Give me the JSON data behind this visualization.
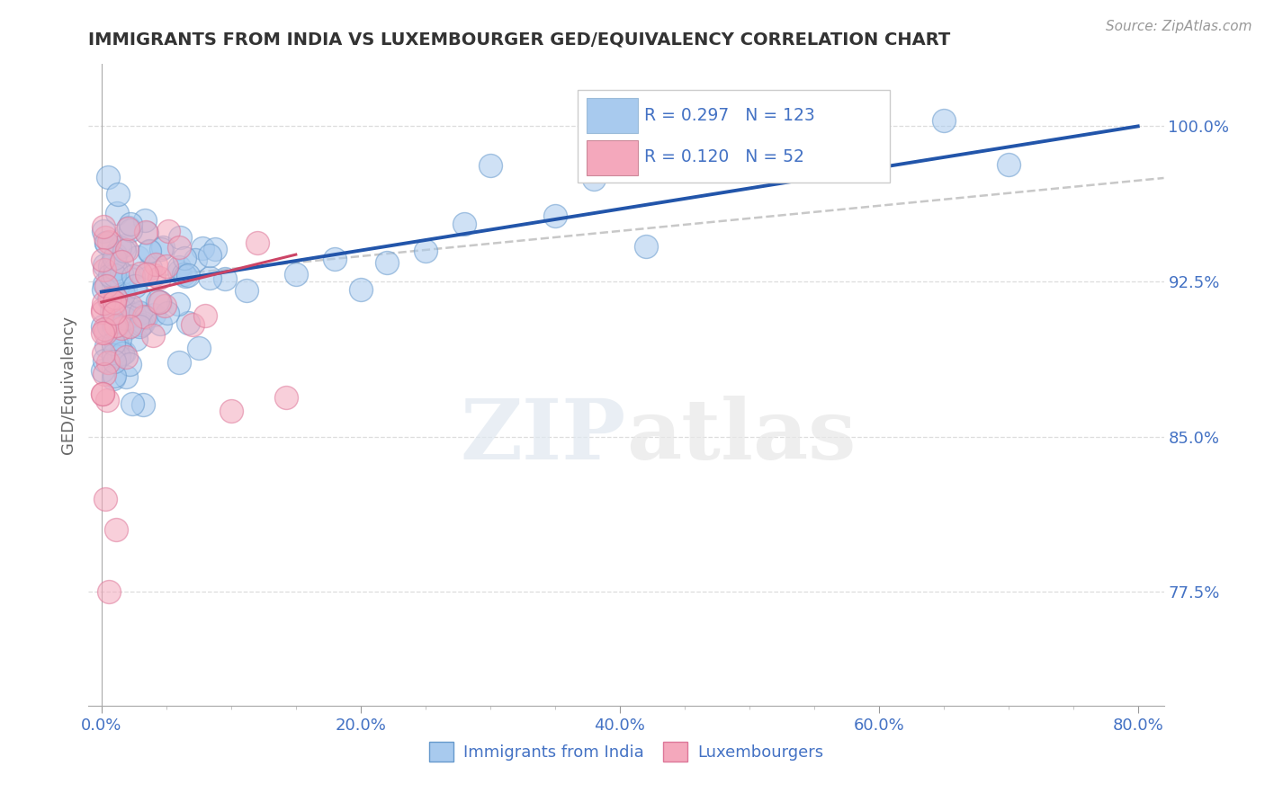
{
  "title": "IMMIGRANTS FROM INDIA VS LUXEMBOURGER GED/EQUIVALENCY CORRELATION CHART",
  "source": "Source: ZipAtlas.com",
  "xlabel_vals": [
    0.0,
    20.0,
    40.0,
    60.0,
    80.0
  ],
  "ylabel_vals": [
    77.5,
    85.0,
    92.5,
    100.0
  ],
  "xlim": [
    -1.0,
    82.0
  ],
  "ylim": [
    72.0,
    103.0
  ],
  "blue_r": 0.297,
  "blue_n": 123,
  "pink_r": 0.12,
  "pink_n": 52,
  "blue_color": "#A8CAEE",
  "pink_color": "#F4A8BC",
  "blue_edge": "#6699CC",
  "pink_edge": "#DD7799",
  "trend_blue": "#2255AA",
  "trend_pink": "#CC4466",
  "ref_line_color": "#C8C8C8",
  "legend_box_blue": "#A8CAEE",
  "legend_box_pink": "#F4A8BC",
  "legend_text_color": "#4472C4",
  "watermark_zip": "ZIP",
  "watermark_atlas": "atlas",
  "ylabel": "GED/Equivalency",
  "blue_trend_x0": 0.0,
  "blue_trend_y0": 92.0,
  "blue_trend_x1": 80.0,
  "blue_trend_y1": 100.0,
  "pink_trend_x0": 0.0,
  "pink_trend_y0": 91.5,
  "pink_trend_x1": 15.0,
  "pink_trend_y1": 93.8,
  "ref_x0": 0.0,
  "ref_y0": 92.5,
  "ref_x1": 82.0,
  "ref_y1": 97.5,
  "dot_size": 350,
  "alpha": 0.55,
  "title_color": "#333333",
  "axis_color": "#4472C4",
  "ylabel_color": "#666666",
  "source_color": "#999999",
  "grid_color": "#DDDDDD"
}
